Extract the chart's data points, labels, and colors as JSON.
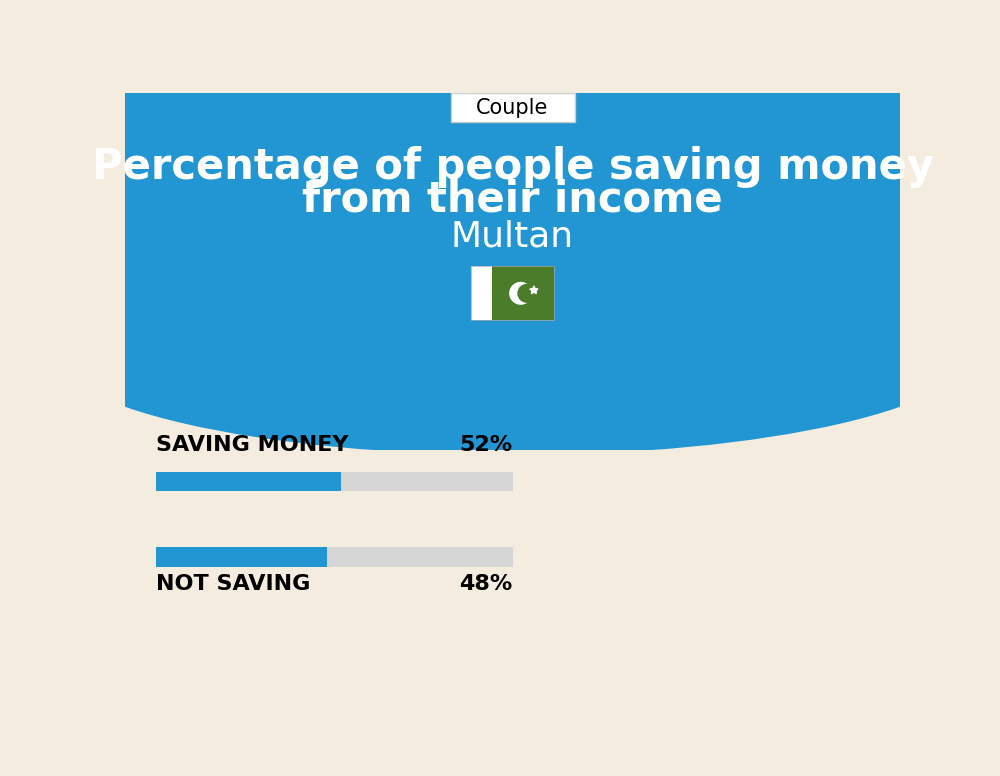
{
  "title_line1": "Percentage of people saving money",
  "title_line2": "from their income",
  "subtitle": "Multan",
  "tab_label": "Couple",
  "saving_label": "SAVING MONEY",
  "saving_value": 52,
  "saving_pct_text": "52%",
  "not_saving_label": "NOT SAVING",
  "not_saving_value": 48,
  "not_saving_pct_text": "48%",
  "bar_color": "#2196d3",
  "bar_bg_color": "#d5d5d5",
  "blue_bg": "#2196d3",
  "cream_bg": "#f5ece0",
  "white": "#ffffff",
  "black": "#000000",
  "tab_border_color": "#cccccc",
  "flag_green": "#4a7c2a",
  "fig_width": 10.0,
  "fig_height": 7.76
}
